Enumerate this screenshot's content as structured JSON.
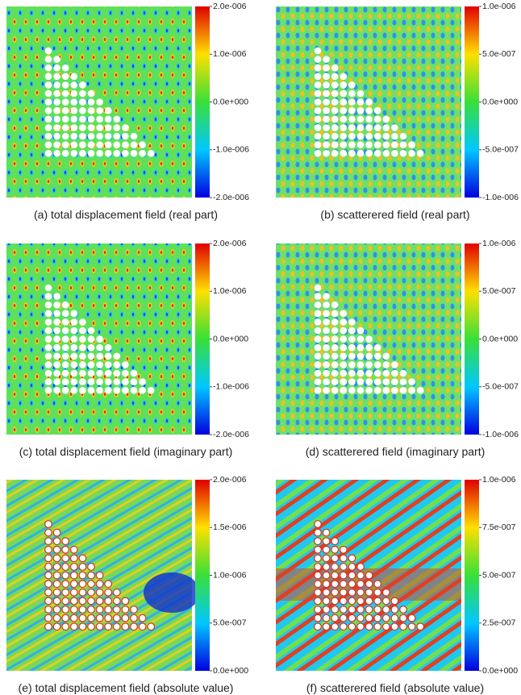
{
  "panels": [
    {
      "caption": "(a) total displacement field (real part)",
      "colorbar": {
        "lim": [
          -2e-06,
          2e-06
        ],
        "ticks": [
          {
            "value": 2e-06,
            "label": "2.0e-006"
          },
          {
            "value": 1e-06,
            "label": "1.0e-006"
          },
          {
            "value": 0,
            "label": "0.0e+000"
          },
          {
            "value": -1e-06,
            "label": "-1.0e-006"
          },
          {
            "value": -2e-06,
            "label": "-2.0e-006"
          }
        ]
      }
    },
    {
      "caption": "(b) scatterered field (real part)",
      "colorbar": {
        "lim": [
          -1e-06,
          1e-06
        ],
        "ticks": [
          {
            "value": 1e-06,
            "label": "1.0e-006"
          },
          {
            "value": 5e-07,
            "label": "5.0e-007"
          },
          {
            "value": 0,
            "label": "0.0e+000"
          },
          {
            "value": -5e-07,
            "label": "-5.0e-007"
          },
          {
            "value": -1e-06,
            "label": "-1.0e-006"
          }
        ]
      }
    },
    {
      "caption": "(c) total displacement field (imaginary part)",
      "colorbar": {
        "lim": [
          -2e-06,
          2e-06
        ],
        "ticks": [
          {
            "value": 2e-06,
            "label": "2.0e-006"
          },
          {
            "value": 1e-06,
            "label": "1.0e-006"
          },
          {
            "value": 0,
            "label": "0.0e+000"
          },
          {
            "value": -1e-06,
            "label": "-1.0e-006"
          },
          {
            "value": -2e-06,
            "label": "-2.0e-006"
          }
        ]
      }
    },
    {
      "caption": "(d) scatterered field (imaginary part)",
      "colorbar": {
        "lim": [
          -1e-06,
          1e-06
        ],
        "ticks": [
          {
            "value": 1e-06,
            "label": "1.0e-006"
          },
          {
            "value": 5e-07,
            "label": "5.0e-007"
          },
          {
            "value": 0,
            "label": "0.0e+000"
          },
          {
            "value": -5e-07,
            "label": "-5.0e-007"
          },
          {
            "value": -1e-06,
            "label": "-1.0e-006"
          }
        ]
      }
    },
    {
      "caption": "(e) total displacement field (absolute value)",
      "colorbar": {
        "lim": [
          0,
          2e-06
        ],
        "ticks": [
          {
            "value": 2e-06,
            "label": "2.0e-006"
          },
          {
            "value": 1.5e-06,
            "label": "1.5e-006"
          },
          {
            "value": 1e-06,
            "label": "1.0e-006"
          },
          {
            "value": 5e-07,
            "label": "5.0e-007"
          },
          {
            "value": 0,
            "label": "0.0e+000"
          }
        ]
      }
    },
    {
      "caption": "(f) scatterered field (absolute value)",
      "colorbar": {
        "lim": [
          0,
          1e-06
        ],
        "ticks": [
          {
            "value": 1e-06,
            "label": "1.0e-006"
          },
          {
            "value": 7.5e-07,
            "label": "7.5e-007"
          },
          {
            "value": 5e-07,
            "label": "5.0e-007"
          },
          {
            "value": 2.5e-07,
            "label": "2.5e-007"
          },
          {
            "value": 0,
            "label": "0.0e+000"
          }
        ]
      }
    }
  ]
}
